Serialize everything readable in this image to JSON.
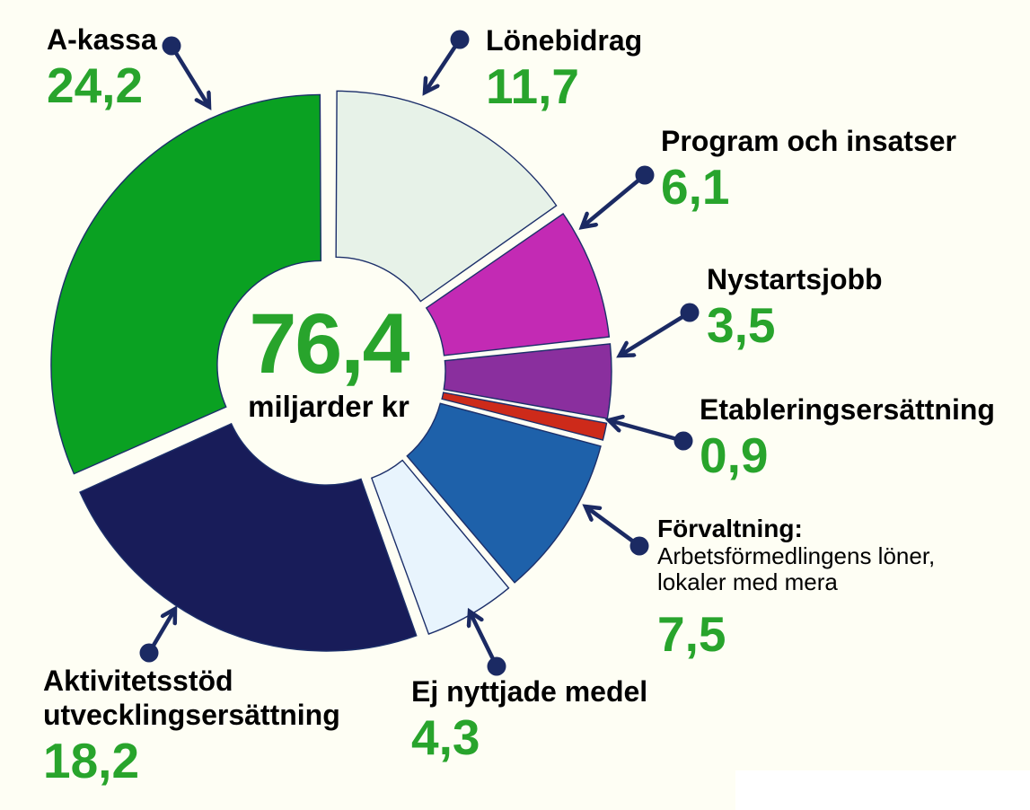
{
  "page": {
    "background_color": "#fefef4",
    "corner_rect_color": "#ffffff"
  },
  "chart_data": {
    "type": "pie",
    "subtype": "exploded-donut",
    "unit": "miljarder kr",
    "total_value": 76.4,
    "center": {
      "value": "76,4",
      "caption": "miljarder kr"
    },
    "legend_position": "around-chart-with-leader-arrows",
    "segments": [
      {
        "label": "Lönebidrag",
        "value": 11.7,
        "display": "11,7",
        "color": "#e7f2e8"
      },
      {
        "label": "Program och insatser",
        "value": 6.1,
        "display": "6,1",
        "color": "#c32ab4"
      },
      {
        "label": "Nystartsjobb",
        "value": 3.5,
        "display": "3,5",
        "color": "#8a2f9e"
      },
      {
        "label": "Etableringsersättning",
        "value": 0.9,
        "display": "0,9",
        "color": "#cd2a1a"
      },
      {
        "label": "Förvaltning:",
        "sublabel_line1": "Arbetsförmedlingens löner,",
        "sublabel_line2": "lokaler med mera",
        "value": 7.5,
        "display": "7,5",
        "color": "#1e61aa"
      },
      {
        "label": "Ej nyttjade medel",
        "value": 4.3,
        "display": "4,3",
        "color": "#e8f4fd"
      },
      {
        "label": "Aktivitetsstöd utvecklingsersättning",
        "label_line1": "Aktivitetsstöd",
        "label_line2": "utvecklingsersättning",
        "value": 18.2,
        "display": "18,2",
        "color": "#181c59"
      },
      {
        "label": "A-kassa",
        "value": 24.2,
        "display": "24,2",
        "color": "#0aa122"
      }
    ],
    "styles": {
      "value_text_color": "#28a42c",
      "label_text_color": "#000000",
      "arrow_color": "#1b2a63",
      "slice_outline_color": "#1c2f6a"
    }
  }
}
